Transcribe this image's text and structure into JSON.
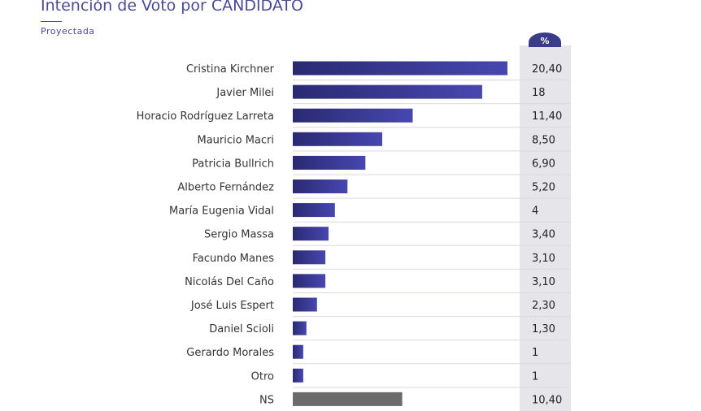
{
  "chart_data": {
    "type": "bar",
    "orientation": "horizontal",
    "title": "Intención de Voto por CANDIDATO",
    "subtitle": "Proyectada",
    "value_header": "%",
    "categories": [
      "Cristina Kirchner",
      "Javier Milei",
      "Horacio Rodríguez Larreta",
      "Mauricio Macri",
      "Patricia Bullrich",
      "Alberto Fernández",
      "María Eugenia Vidal",
      "Sergio Massa",
      "Facundo Manes",
      "Nicolás Del Caño",
      "José Luis Espert",
      "Daniel Scioli",
      "Gerardo Morales",
      "Otro",
      "NS"
    ],
    "values": [
      20.4,
      18,
      11.4,
      8.5,
      6.9,
      5.2,
      4,
      3.4,
      3.1,
      3.1,
      2.3,
      1.3,
      1,
      1,
      10.4
    ],
    "value_labels": [
      "20,40",
      "18",
      "11,40",
      "8,50",
      "6,90",
      "5,20",
      "4",
      "3,40",
      "3,10",
      "3,10",
      "2,30",
      "1,30",
      "1",
      "1",
      "10,40"
    ],
    "colors": {
      "bar_start": "#2a2a72",
      "bar_end": "#4747b0",
      "ns_bar": "#6b6b6b",
      "header_badge": "#3b3b8c",
      "value_column": "#e6e6ea",
      "title": "#4a4a9a"
    }
  }
}
